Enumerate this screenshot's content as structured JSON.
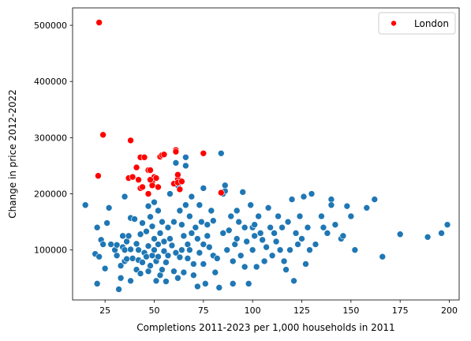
{
  "chart_data": {
    "type": "scatter",
    "title": "",
    "xlabel": "Completions 2011-2023 per 1,000 households in 2011",
    "ylabel": "Change in price 2012-2022",
    "xlim": [
      8.5,
      205
    ],
    "ylim": [
      11000,
      531000
    ],
    "xticks": [
      25,
      50,
      75,
      100,
      125,
      150,
      175,
      200
    ],
    "yticks": [
      100000,
      200000,
      300000,
      400000,
      500000
    ],
    "grid": false,
    "legend": {
      "position": "top-right",
      "entries": [
        "London"
      ]
    },
    "colors": {
      "london": "#ff0000",
      "other": "#1f77b4"
    },
    "series": [
      {
        "name": "",
        "color": "#1f77b4",
        "points": [
          [
            15,
            180000
          ],
          [
            20,
            93000
          ],
          [
            21,
            140000
          ],
          [
            21,
            40000
          ],
          [
            22,
            88000
          ],
          [
            23,
            118000
          ],
          [
            24,
            110000
          ],
          [
            25,
            67000
          ],
          [
            26,
            148000
          ],
          [
            27,
            175000
          ],
          [
            28,
            110000
          ],
          [
            30,
            100000
          ],
          [
            31,
            109000
          ],
          [
            31,
            90000
          ],
          [
            32,
            30000
          ],
          [
            33,
            50000
          ],
          [
            33,
            72000
          ],
          [
            34,
            125000
          ],
          [
            34,
            105000
          ],
          [
            35,
            195000
          ],
          [
            35,
            100000
          ],
          [
            35,
            80000
          ],
          [
            36,
            84000
          ],
          [
            36,
            115000
          ],
          [
            37,
            125000
          ],
          [
            38,
            157000
          ],
          [
            38,
            101000
          ],
          [
            38,
            45000
          ],
          [
            39,
            85000
          ],
          [
            40,
            155000
          ],
          [
            41,
            111000
          ],
          [
            41,
            65000
          ],
          [
            42,
            100000
          ],
          [
            42,
            82000
          ],
          [
            43,
            128000
          ],
          [
            43,
            58000
          ],
          [
            44,
            78000
          ],
          [
            44,
            148000
          ],
          [
            45,
            95000
          ],
          [
            46,
            88000
          ],
          [
            46,
            133000
          ],
          [
            47,
            178000
          ],
          [
            47,
            107000
          ],
          [
            47,
            62000
          ],
          [
            48,
            72000
          ],
          [
            48,
            159000
          ],
          [
            49,
            90000
          ],
          [
            49,
            142000
          ],
          [
            50,
            185000
          ],
          [
            50,
            120000
          ],
          [
            50,
            100000
          ],
          [
            51,
            80000
          ],
          [
            51,
            45000
          ],
          [
            52,
            170000
          ],
          [
            52,
            110000
          ],
          [
            52,
            88000
          ],
          [
            53,
            55000
          ],
          [
            53,
            130000
          ],
          [
            54,
            150000
          ],
          [
            54,
            65000
          ],
          [
            55,
            98000
          ],
          [
            55,
            115000
          ],
          [
            56,
            78000
          ],
          [
            56,
            44000
          ],
          [
            57,
            140000
          ],
          [
            57,
            90000
          ],
          [
            58,
            200000
          ],
          [
            58,
            120000
          ],
          [
            59,
            108000
          ],
          [
            60,
            62000
          ],
          [
            60,
            150000
          ],
          [
            61,
            95000
          ],
          [
            61,
            255000
          ],
          [
            62,
            215000
          ],
          [
            62,
            50000
          ],
          [
            63,
            87000
          ],
          [
            63,
            170000
          ],
          [
            64,
            100000
          ],
          [
            64,
            145000
          ],
          [
            65,
            125000
          ],
          [
            65,
            60000
          ],
          [
            66,
            265000
          ],
          [
            66,
            180000
          ],
          [
            66,
            250000
          ],
          [
            67,
            110000
          ],
          [
            67,
            85000
          ],
          [
            68,
            160000
          ],
          [
            68,
            100000
          ],
          [
            69,
            195000
          ],
          [
            69,
            130000
          ],
          [
            70,
            75000
          ],
          [
            70,
            55000
          ],
          [
            71,
            140000
          ],
          [
            72,
            120000
          ],
          [
            72,
            35000
          ],
          [
            73,
            180000
          ],
          [
            73,
            95000
          ],
          [
            74,
            150000
          ],
          [
            75,
            110000
          ],
          [
            75,
            210000
          ],
          [
            75,
            75000
          ],
          [
            76,
            40000
          ],
          [
            77,
            145000
          ],
          [
            77,
            125000
          ],
          [
            78,
            105000
          ],
          [
            79,
            170000
          ],
          [
            80,
            90000
          ],
          [
            80,
            152000
          ],
          [
            81,
            60000
          ],
          [
            82,
            85000
          ],
          [
            83,
            33000
          ],
          [
            84,
            272000
          ],
          [
            85,
            200000
          ],
          [
            85,
            130000
          ],
          [
            86,
            205000
          ],
          [
            86,
            215000
          ],
          [
            87,
            100000
          ],
          [
            88,
            135000
          ],
          [
            89,
            160000
          ],
          [
            90,
            80000
          ],
          [
            90,
            40000
          ],
          [
            91,
            110000
          ],
          [
            92,
            170000
          ],
          [
            92,
            120000
          ],
          [
            93,
            150000
          ],
          [
            94,
            90000
          ],
          [
            95,
            203000
          ],
          [
            96,
            140000
          ],
          [
            96,
            70000
          ],
          [
            97,
            115000
          ],
          [
            98,
            40000
          ],
          [
            99,
            180000
          ],
          [
            100,
            140000
          ],
          [
            100,
            100000
          ],
          [
            101,
            125000
          ],
          [
            101,
            145000
          ],
          [
            102,
            70000
          ],
          [
            103,
            160000
          ],
          [
            104,
            130000
          ],
          [
            105,
            118000
          ],
          [
            106,
            80000
          ],
          [
            107,
            105000
          ],
          [
            108,
            175000
          ],
          [
            109,
            140000
          ],
          [
            110,
            90000
          ],
          [
            111,
            130000
          ],
          [
            112,
            115000
          ],
          [
            113,
            160000
          ],
          [
            114,
            100000
          ],
          [
            115,
            140000
          ],
          [
            116,
            80000
          ],
          [
            117,
            65000
          ],
          [
            118,
            150000
          ],
          [
            119,
            100000
          ],
          [
            120,
            190000
          ],
          [
            121,
            45000
          ],
          [
            122,
            130000
          ],
          [
            123,
            110000
          ],
          [
            124,
            160000
          ],
          [
            125,
            120000
          ],
          [
            126,
            195000
          ],
          [
            127,
            75000
          ],
          [
            128,
            140000
          ],
          [
            129,
            100000
          ],
          [
            130,
            200000
          ],
          [
            132,
            110000
          ],
          [
            135,
            160000
          ],
          [
            136,
            140000
          ],
          [
            138,
            130000
          ],
          [
            140,
            190000
          ],
          [
            140,
            180000
          ],
          [
            142,
            145000
          ],
          [
            145,
            120000
          ],
          [
            146,
            125000
          ],
          [
            148,
            178000
          ],
          [
            150,
            160000
          ],
          [
            152,
            100000
          ],
          [
            158,
            175000
          ],
          [
            162,
            190000
          ],
          [
            166,
            88000
          ],
          [
            175,
            128000
          ],
          [
            189,
            123000
          ],
          [
            196,
            130000
          ],
          [
            199,
            145000
          ]
        ]
      },
      {
        "name": "London",
        "color": "#ff0000",
        "points": [
          [
            22,
            505000
          ],
          [
            21.5,
            232000
          ],
          [
            24,
            305000
          ],
          [
            37,
            228000
          ],
          [
            38,
            295000
          ],
          [
            39,
            230000
          ],
          [
            41,
            247000
          ],
          [
            42,
            225000
          ],
          [
            43,
            265000
          ],
          [
            43,
            210000
          ],
          [
            44,
            212000
          ],
          [
            45,
            265000
          ],
          [
            47,
            242000
          ],
          [
            47,
            200000
          ],
          [
            48,
            242000
          ],
          [
            49,
            220000
          ],
          [
            50,
            230000
          ],
          [
            51,
            228000
          ],
          [
            52,
            212000
          ],
          [
            53,
            266000
          ],
          [
            54,
            269000
          ],
          [
            55,
            270000
          ],
          [
            60,
            218000
          ],
          [
            61,
            278000
          ],
          [
            62,
            226000
          ],
          [
            62,
            234000
          ],
          [
            62,
            220000
          ],
          [
            63,
            208000
          ],
          [
            64,
            222000
          ],
          [
            75,
            272000
          ],
          [
            84,
            202000
          ],
          [
            49,
            215000
          ],
          [
            48,
            225000
          ],
          [
            61,
            275000
          ]
        ]
      }
    ]
  }
}
